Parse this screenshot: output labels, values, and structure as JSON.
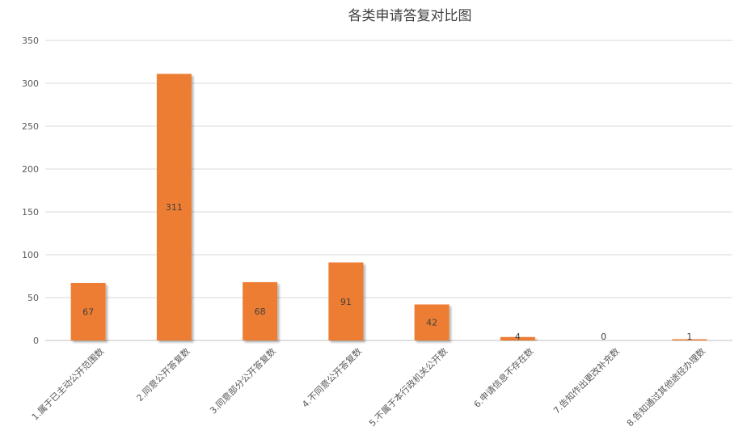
{
  "colors": {
    "bar": "#ED7D31",
    "bar_shadow": "#c7c7c7"
  },
  "chart_data": {
    "type": "bar",
    "title": "各类申请答复对比图",
    "categories": [
      "1.属于已主动公开范围数",
      "2.同意公开答复数",
      "3.同意部分公开答复数",
      "4.不同意公开答复数",
      "5.不属于本行政机关公开数",
      "6.申请信息不存在数",
      "7.告知作出更改补充数",
      "8.告知通过其他途径办理数"
    ],
    "values": [
      67,
      311,
      68,
      91,
      42,
      4,
      0,
      1
    ],
    "data_labels": [
      "67",
      "311",
      "68",
      "91",
      "42",
      "4",
      "0",
      "1"
    ],
    "y_ticks": [
      "0",
      "50",
      "100",
      "150",
      "200",
      "250",
      "300",
      "350"
    ],
    "ylim": [
      0,
      350
    ],
    "grid": true,
    "legend": "none"
  }
}
